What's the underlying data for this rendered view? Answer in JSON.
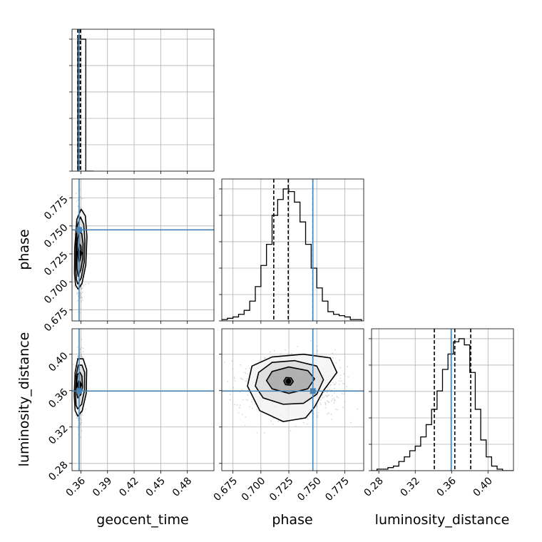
{
  "chart_data": {
    "type": "corner",
    "parameters": [
      "geocent_time",
      "phase",
      "luminosity_distance"
    ],
    "axis_labels": {
      "geocent_time": "geocent_time",
      "phase": "phase",
      "luminosity_distance": "luminosity_distance"
    },
    "ranges": {
      "geocent_time": [
        0.35,
        0.51
      ],
      "phase": [
        0.665,
        0.792
      ],
      "luminosity_distance": [
        0.272,
        0.428
      ]
    },
    "ticks": {
      "geocent_time": [
        0.36,
        0.39,
        0.42,
        0.45,
        0.48
      ],
      "phase": [
        0.675,
        0.7,
        0.725,
        0.75,
        0.775
      ],
      "luminosity_distance": [
        0.28,
        0.32,
        0.36,
        0.4
      ]
    },
    "tick_labels": {
      "geocent_time": [
        "0.36",
        "0.39",
        "0.42",
        "0.45",
        "0.48"
      ],
      "phase": [
        "0.675",
        "0.700",
        "0.725",
        "0.750",
        "0.775"
      ],
      "luminosity_distance": [
        "0.28",
        "0.32",
        "0.36",
        "0.40"
      ]
    },
    "truths": {
      "geocent_time": 0.358,
      "phase": 0.7465,
      "luminosity_distance": 0.3595
    },
    "quantiles": {
      "geocent_time": [
        0.3565,
        0.3585,
        0.3597
      ],
      "phase": [
        0.7115,
        0.7245,
        0.7465
      ],
      "luminosity_distance": [
        0.341,
        0.3635,
        0.381
      ]
    },
    "hist_geocent_time": {
      "bin_edges": [
        0.3565,
        0.3655,
        0.3745
      ],
      "counts": [
        100,
        0
      ]
    },
    "hist_phase": {
      "bin_edges": [
        0.665,
        0.67,
        0.675,
        0.68,
        0.685,
        0.69,
        0.695,
        0.7,
        0.705,
        0.71,
        0.715,
        0.72,
        0.725,
        0.73,
        0.735,
        0.74,
        0.745,
        0.75,
        0.755,
        0.76,
        0.765,
        0.77,
        0.775,
        0.78,
        0.785,
        0.79
      ],
      "counts": [
        1,
        2,
        3,
        5,
        8,
        15,
        26,
        42,
        58,
        80,
        92,
        100,
        98,
        90,
        75,
        58,
        40,
        25,
        15,
        7,
        5,
        4,
        3,
        1,
        1
      ]
    },
    "hist_luminosity_distance": {
      "bin_edges": [
        0.272,
        0.278,
        0.284,
        0.29,
        0.296,
        0.302,
        0.308,
        0.314,
        0.32,
        0.326,
        0.332,
        0.338,
        0.344,
        0.35,
        0.356,
        0.362,
        0.368,
        0.374,
        0.38,
        0.386,
        0.392,
        0.398,
        0.404,
        0.41,
        0.416,
        0.422,
        0.428
      ],
      "counts": [
        0,
        1,
        1,
        2,
        3,
        6,
        9,
        13,
        16,
        22,
        30,
        40,
        52,
        66,
        76,
        84,
        86,
        82,
        64,
        40,
        20,
        9,
        3,
        1,
        0,
        0
      ]
    },
    "contours_phase_vs_geocent_time": {
      "levels": [
        {
          "points": [
            [
              0.3578,
              0.7175
            ],
            [
              0.3592,
              0.7198
            ],
            [
              0.3605,
              0.725
            ],
            [
              0.36,
              0.732
            ],
            [
              0.3583,
              0.734
            ],
            [
              0.3571,
              0.7285
            ],
            [
              0.3568,
              0.7225
            ]
          ]
        },
        {
          "points": [
            [
              0.357,
              0.705
            ],
            [
              0.3598,
              0.7105
            ],
            [
              0.3622,
              0.721
            ],
            [
              0.3625,
              0.734
            ],
            [
              0.361,
              0.743
            ],
            [
              0.3582,
              0.745
            ],
            [
              0.3562,
              0.738
            ],
            [
              0.3553,
              0.725
            ],
            [
              0.3556,
              0.712
            ]
          ]
        },
        {
          "points": [
            [
              0.3565,
              0.698
            ],
            [
              0.3604,
              0.7035
            ],
            [
              0.3638,
              0.718
            ],
            [
              0.3645,
              0.737
            ],
            [
              0.3632,
              0.7515
            ],
            [
              0.3595,
              0.758
            ],
            [
              0.3562,
              0.751
            ],
            [
              0.3545,
              0.732
            ],
            [
              0.3542,
              0.712
            ],
            [
              0.3549,
              0.702
            ]
          ]
        },
        {
          "points": [
            [
              0.3568,
              0.6935
            ],
            [
              0.3612,
              0.6985
            ],
            [
              0.3655,
              0.715
            ],
            [
              0.3668,
              0.74
            ],
            [
              0.365,
              0.759
            ],
            [
              0.3602,
              0.765
            ],
            [
              0.3555,
              0.756
            ],
            [
              0.353,
              0.73
            ],
            [
              0.3528,
              0.708
            ],
            [
              0.354,
              0.697
            ]
          ]
        }
      ]
    },
    "contours_luminosity_distance_vs_geocent_time": {
      "levels": [
        {
          "points": [
            [
              0.357,
              0.363
            ],
            [
              0.359,
              0.362
            ],
            [
              0.3598,
              0.366
            ],
            [
              0.359,
              0.37
            ],
            [
              0.3572,
              0.3705
            ],
            [
              0.3564,
              0.3668
            ]
          ]
        },
        {
          "points": [
            [
              0.3565,
              0.352
            ],
            [
              0.3598,
              0.3555
            ],
            [
              0.3618,
              0.364
            ],
            [
              0.3612,
              0.376
            ],
            [
              0.359,
              0.38
            ],
            [
              0.3562,
              0.378
            ],
            [
              0.355,
              0.368
            ],
            [
              0.3552,
              0.358
            ]
          ]
        },
        {
          "points": [
            [
              0.3563,
              0.34
            ],
            [
              0.3608,
              0.345
            ],
            [
              0.364,
              0.36
            ],
            [
              0.3642,
              0.38
            ],
            [
              0.3612,
              0.388
            ],
            [
              0.357,
              0.388
            ],
            [
              0.3548,
              0.377
            ],
            [
              0.354,
              0.356
            ],
            [
              0.3545,
              0.344
            ]
          ]
        },
        {
          "points": [
            [
              0.3565,
              0.332
            ],
            [
              0.3615,
              0.338
            ],
            [
              0.366,
              0.357
            ],
            [
              0.3665,
              0.383
            ],
            [
              0.3625,
              0.395
            ],
            [
              0.3565,
              0.395
            ],
            [
              0.3535,
              0.38
            ],
            [
              0.3525,
              0.355
            ],
            [
              0.3535,
              0.338
            ]
          ]
        }
      ]
    },
    "contours_luminosity_distance_vs_phase": {
      "levels": [
        {
          "points": [
            [
              0.722,
              0.3665
            ],
            [
              0.7265,
              0.366
            ],
            [
              0.729,
              0.37
            ],
            [
              0.727,
              0.374
            ],
            [
              0.7225,
              0.3745
            ],
            [
              0.7205,
              0.3705
            ]
          ]
        },
        {
          "points": [
            [
              0.71,
              0.362
            ],
            [
              0.725,
              0.357
            ],
            [
              0.742,
              0.362
            ],
            [
              0.748,
              0.373
            ],
            [
              0.742,
              0.382
            ],
            [
              0.725,
              0.386
            ],
            [
              0.71,
              0.381
            ],
            [
              0.705,
              0.371
            ]
          ]
        },
        {
          "points": [
            [
              0.702,
              0.352
            ],
            [
              0.72,
              0.345
            ],
            [
              0.738,
              0.346
            ],
            [
              0.75,
              0.356
            ],
            [
              0.756,
              0.372
            ],
            [
              0.75,
              0.387
            ],
            [
              0.73,
              0.393
            ],
            [
              0.71,
              0.391
            ],
            [
              0.698,
              0.38
            ],
            [
              0.695,
              0.365
            ]
          ]
        },
        {
          "points": [
            [
              0.699,
              0.338
            ],
            [
              0.72,
              0.326
            ],
            [
              0.74,
              0.33
            ],
            [
              0.748,
              0.342
            ],
            [
              0.756,
              0.36
            ],
            [
              0.768,
              0.38
            ],
            [
              0.762,
              0.396
            ],
            [
              0.738,
              0.4
            ],
            [
              0.71,
              0.397
            ],
            [
              0.692,
              0.387
            ],
            [
              0.688,
              0.365
            ]
          ]
        }
      ]
    },
    "style": {
      "frame_color": "#000000",
      "grid_color": "#b0b0b0",
      "truth_color": "#4682b4",
      "hist_color": "#000000",
      "scatter_color": "#8c8c8c",
      "density_colors": [
        "#f4f4f4",
        "#dcdcdc",
        "#a8a8a8",
        "#5a5a5a",
        "#000000"
      ]
    }
  }
}
